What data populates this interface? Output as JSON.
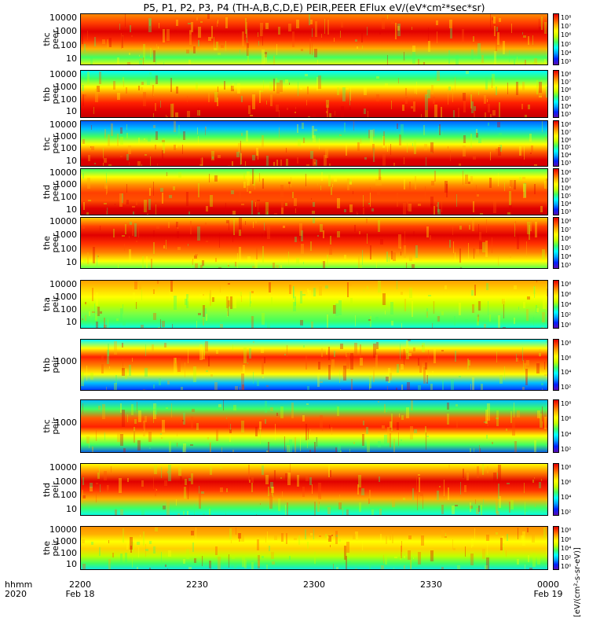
{
  "title": "P5, P1, P2, P3, P4 (TH-A,B,C,D,E) PEIR,PEER EFlux eV/(eV*cm²*sec*sr)",
  "colorbar_units": "[eV/(cm²-s-sr-eV)]",
  "colors": {
    "scale": [
      "#5a0bb0",
      "#0020ff",
      "#00a0ff",
      "#00ffff",
      "#40ff60",
      "#c0ff00",
      "#ffff00",
      "#ffb000",
      "#ff5000",
      "#e00000",
      "#900000",
      "#000000"
    ]
  },
  "x_axis": {
    "hhmm_label": "hhmm",
    "year_label": "2020",
    "ticks": [
      "2200",
      "2230",
      "2300",
      "2330",
      "0000"
    ],
    "dates": [
      "Feb 18",
      "",
      "",
      "",
      "Feb 19"
    ]
  },
  "chart_data": {
    "type": "heatmap",
    "title": "P5, P1, P2, P3, P4 (TH-A,B,C,D,E) PEIR,PEER EFlux eV/(eV*cm²*sec*sr)",
    "x_range": [
      "2020-02-18 22:00",
      "2020-02-19 00:00"
    ],
    "y_scale": "log",
    "color_scale": "log",
    "panels": [
      {
        "label": [
          "thc",
          "peer"
        ],
        "y_ticks": [
          "10000",
          "1000",
          "100",
          "10"
        ],
        "cbar_ticks": [
          "10⁸",
          "10⁷",
          "10⁶",
          "10⁵",
          "10⁴",
          "10³"
        ],
        "cbar_range": [
          "1e3",
          "1e8"
        ]
      },
      {
        "label": [
          "thb",
          "peer"
        ],
        "y_ticks": [
          "10000",
          "1000",
          "100",
          "10"
        ],
        "cbar_ticks": [
          "10⁸",
          "10⁷",
          "10⁶",
          "10⁵",
          "10⁴",
          "10³"
        ],
        "cbar_range": [
          "1e3",
          "1e8"
        ]
      },
      {
        "label": [
          "thc",
          "peer"
        ],
        "y_ticks": [
          "10000",
          "1000",
          "100",
          "10"
        ],
        "cbar_ticks": [
          "10⁸",
          "10⁷",
          "10⁶",
          "10⁵",
          "10⁴",
          "10³"
        ],
        "cbar_range": [
          "1e3",
          "1e8"
        ]
      },
      {
        "label": [
          "thd",
          "peer"
        ],
        "y_ticks": [
          "10000",
          "1000",
          "100",
          "10"
        ],
        "cbar_ticks": [
          "10⁸",
          "10⁷",
          "10⁶",
          "10⁵",
          "10⁴",
          "10³"
        ],
        "cbar_range": [
          "1e3",
          "1e8"
        ]
      },
      {
        "label": [
          "the",
          "peer"
        ],
        "y_ticks": [
          "10000",
          "1000",
          "100",
          "10"
        ],
        "cbar_ticks": [
          "10⁸",
          "10⁷",
          "10⁶",
          "10⁵",
          "10⁴",
          "10³"
        ],
        "cbar_range": [
          "1e3",
          "1e8"
        ]
      },
      {
        "label": [
          "tha",
          "peir"
        ],
        "y_ticks": [
          "10000",
          "1000",
          "100",
          "10"
        ],
        "cbar_ticks": [
          "10⁸",
          "10⁶",
          "10⁴",
          "10²",
          "10⁰"
        ],
        "cbar_range": [
          "1e0",
          "1e8"
        ]
      },
      {
        "label": [
          "thb",
          "peir"
        ],
        "y_ticks": [
          "1000"
        ],
        "cbar_ticks": [
          "10⁸",
          "10⁶",
          "10⁴",
          "10²"
        ],
        "cbar_range": [
          "1e2",
          "1e8"
        ]
      },
      {
        "label": [
          "thc",
          "peir"
        ],
        "y_ticks": [
          "1000"
        ],
        "cbar_ticks": [
          "10⁸",
          "10⁶",
          "10⁴",
          "10²"
        ],
        "cbar_range": [
          "1e2",
          "1e8"
        ]
      },
      {
        "label": [
          "thd",
          "peir"
        ],
        "y_ticks": [
          "10000",
          "1000",
          "100",
          "10"
        ],
        "cbar_ticks": [
          "10⁸",
          "10⁶",
          "10⁴",
          "10²"
        ],
        "cbar_range": [
          "1e2",
          "1e8"
        ]
      },
      {
        "label": [
          "the",
          "peir"
        ],
        "y_ticks": [
          "10000",
          "1000",
          "100",
          "10"
        ],
        "cbar_ticks": [
          "10⁸",
          "10⁶",
          "10⁴",
          "10²",
          "10⁰"
        ],
        "cbar_range": [
          "1e0",
          "1e8"
        ]
      }
    ]
  }
}
